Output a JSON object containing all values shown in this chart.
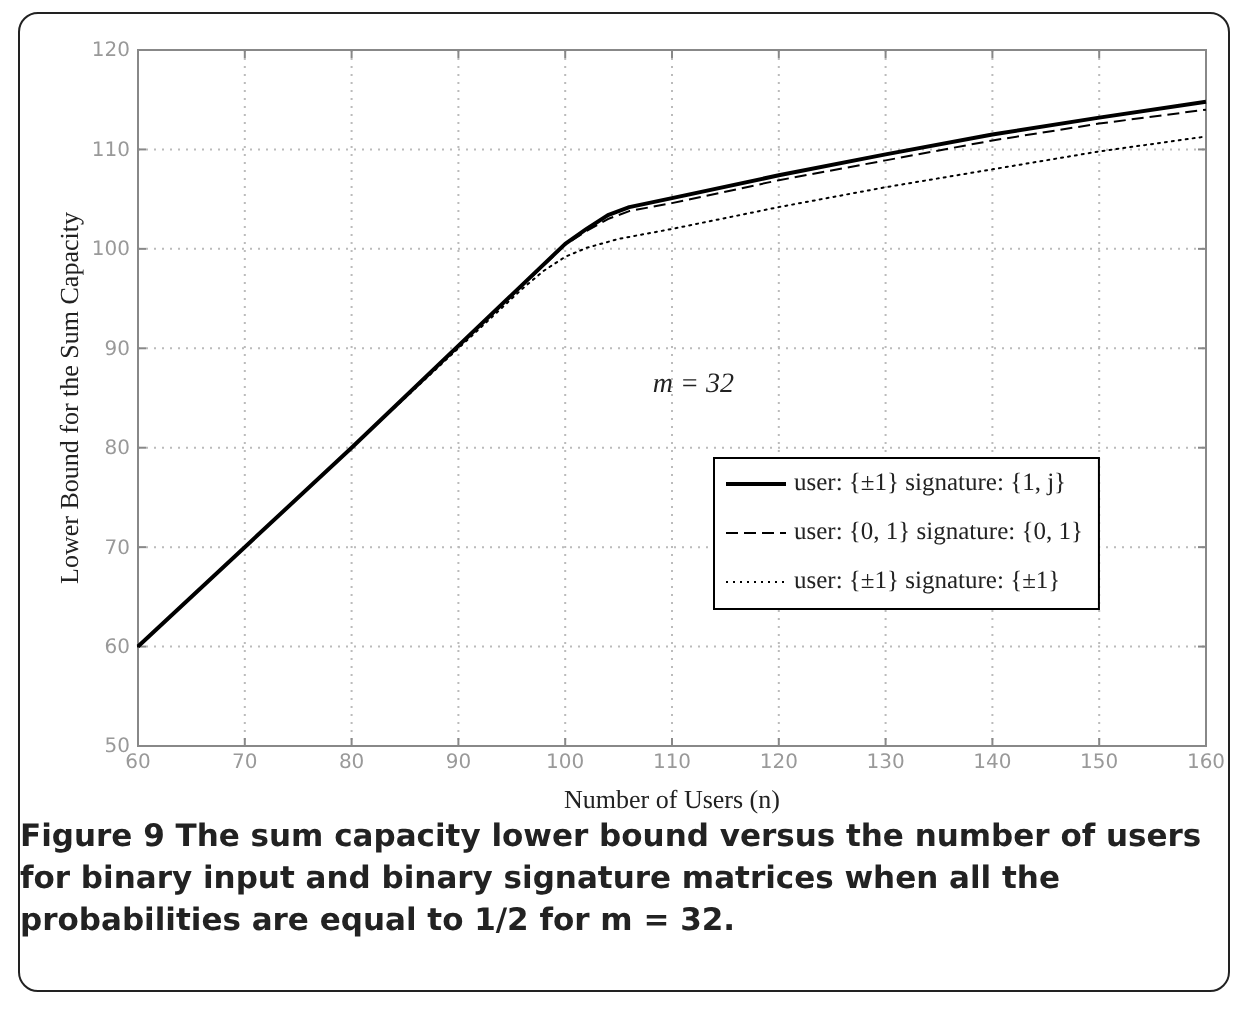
{
  "chart_data": {
    "type": "line",
    "xlabel": "Number of Users (n)",
    "ylabel": "Lower Bound for the Sum Capacity",
    "xlim": [
      60,
      160
    ],
    "ylim": [
      50,
      120
    ],
    "xticks": [
      60,
      70,
      80,
      90,
      100,
      110,
      120,
      130,
      140,
      150,
      160
    ],
    "yticks": [
      50,
      60,
      70,
      80,
      90,
      100,
      110,
      120
    ],
    "grid": true,
    "legend": "right",
    "annotations": [
      "m = 32",
      "Figure 9 The sum capacity lower bound versus the number of users for binary input and binary signature matrices when all the probabilities are equal to 1/2 for m = 32."
    ],
    "series": [
      {
        "name": "user: {±1} signature: {1, j}",
        "color": "#000000",
        "line_style": "solid",
        "x": [
          60,
          80,
          100,
          102,
          104,
          106,
          110,
          120,
          130,
          140,
          150,
          160
        ],
        "values": [
          60,
          80,
          100.5,
          102,
          103.4,
          104.2,
          105.1,
          107.4,
          109.5,
          111.5,
          113.2,
          114.8
        ]
      },
      {
        "name": "user: {0, 1} signature: {0, 1}",
        "color": "#000000",
        "line_style": "dashed",
        "x": [
          60,
          80,
          100,
          102,
          104,
          106,
          110,
          120,
          130,
          140,
          150,
          160
        ],
        "values": [
          60,
          80,
          100.4,
          101.8,
          103,
          103.8,
          104.6,
          106.9,
          108.9,
          110.9,
          112.6,
          114
        ]
      },
      {
        "name": "user: {±1} signature: {±1}",
        "color": "#000000",
        "line_style": "dotted",
        "x": [
          60,
          80,
          96,
          98,
          100,
          102,
          105,
          110,
          120,
          130,
          140,
          150,
          160
        ],
        "values": [
          60,
          80,
          96,
          97.8,
          99.2,
          100.1,
          101,
          102,
          104.2,
          106.2,
          108,
          109.8,
          111.3
        ]
      }
    ]
  }
}
